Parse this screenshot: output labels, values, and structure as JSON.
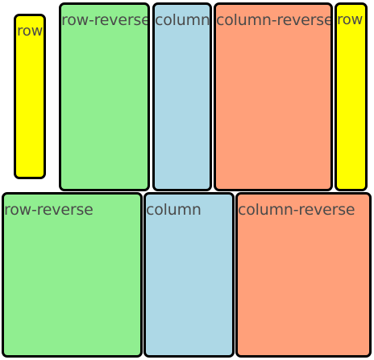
{
  "colors": {
    "yellow": "#ffff00",
    "green": "#90ee90",
    "blue": "#add8e6",
    "salmon": "#ffa07a",
    "border": "#000000",
    "label": "#4a4a4a"
  },
  "boxes": [
    {
      "label": "row",
      "color": "yellow"
    },
    {
      "label": "row-reverse",
      "color": "green"
    },
    {
      "label": "column",
      "color": "blue"
    },
    {
      "label": "column-reverse",
      "color": "salmon"
    },
    {
      "label": "row",
      "color": "yellow"
    },
    {
      "label": "row-reverse",
      "color": "green"
    },
    {
      "label": "column",
      "color": "blue"
    },
    {
      "label": "column-reverse",
      "color": "salmon"
    }
  ]
}
